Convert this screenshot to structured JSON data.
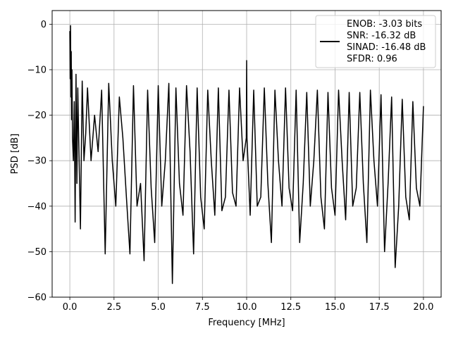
{
  "chart_data": {
    "type": "line",
    "title": "",
    "xlabel": "Frequency [MHz]",
    "ylabel": "PSD [dB]",
    "xlim": [
      -1.0,
      21.0
    ],
    "ylim": [
      -60,
      3
    ],
    "xticks": [
      0.0,
      2.5,
      5.0,
      7.5,
      10.0,
      12.5,
      15.0,
      17.5,
      20.0
    ],
    "xtick_labels": [
      "0.0",
      "2.5",
      "5.0",
      "7.5",
      "10.0",
      "12.5",
      "15.0",
      "17.5",
      "20.0"
    ],
    "yticks": [
      0,
      -10,
      -20,
      -30,
      -40,
      -50,
      -60
    ],
    "ytick_labels": [
      "0",
      "−10",
      "−20",
      "−30",
      "−40",
      "−50",
      "−60"
    ],
    "grid": true,
    "legend_position": "top-right",
    "legend_lines": [
      "ENOB: -3.03 bits",
      "SNR: -16.32 dB",
      "SINAD: -16.48 dB",
      "SFDR: 0.96"
    ],
    "series": [
      {
        "color": "#000000",
        "x": [
          0.0,
          0.02,
          0.04,
          0.06,
          0.08,
          0.1,
          0.12,
          0.15,
          0.2,
          0.25,
          0.3,
          0.35,
          0.4,
          0.45,
          0.5,
          0.6,
          0.7,
          0.8,
          0.9,
          1.0,
          1.2,
          1.4,
          1.6,
          1.8,
          2.0,
          2.2,
          2.4,
          2.6,
          2.8,
          3.0,
          3.2,
          3.4,
          3.6,
          3.8,
          4.0,
          4.2,
          4.4,
          4.6,
          4.8,
          5.0,
          5.2,
          5.4,
          5.6,
          5.8,
          6.0,
          6.2,
          6.4,
          6.6,
          6.8,
          7.0,
          7.2,
          7.4,
          7.6,
          7.8,
          8.0,
          8.2,
          8.4,
          8.6,
          8.8,
          9.0,
          9.2,
          9.4,
          9.6,
          9.8,
          9.98,
          10.0,
          10.02,
          10.2,
          10.4,
          10.6,
          10.8,
          11.0,
          11.2,
          11.4,
          11.6,
          11.8,
          12.0,
          12.2,
          12.4,
          12.6,
          12.8,
          13.0,
          13.2,
          13.4,
          13.6,
          13.8,
          14.0,
          14.2,
          14.4,
          14.6,
          14.8,
          15.0,
          15.2,
          15.4,
          15.6,
          15.8,
          16.0,
          16.2,
          16.4,
          16.6,
          16.8,
          17.0,
          17.2,
          17.4,
          17.6,
          17.8,
          18.0,
          18.2,
          18.4,
          18.6,
          18.8,
          19.0,
          19.2,
          19.4,
          19.6,
          19.8,
          20.0
        ],
        "y": [
          -1.5,
          -12.0,
          -0.3,
          -16.0,
          -6.0,
          -21.0,
          -10.0,
          -25.0,
          -30.0,
          -17.0,
          -43.5,
          -11.0,
          -35.0,
          -14.0,
          -25.0,
          -45.0,
          -12.5,
          -30.0,
          -24.0,
          -14.0,
          -30.0,
          -20.0,
          -28.0,
          -14.5,
          -50.5,
          -13.0,
          -30.0,
          -40.0,
          -16.0,
          -25.0,
          -38.0,
          -50.5,
          -13.5,
          -40.0,
          -35.0,
          -52.0,
          -14.5,
          -36.0,
          -48.0,
          -13.5,
          -40.0,
          -30.0,
          -13.0,
          -57.0,
          -14.0,
          -35.0,
          -42.0,
          -13.5,
          -28.0,
          -50.5,
          -14.0,
          -38.0,
          -45.0,
          -14.5,
          -30.0,
          -42.0,
          -14.0,
          -41.0,
          -38.0,
          -14.5,
          -37.0,
          -40.0,
          -14.0,
          -30.0,
          -25.0,
          -8.0,
          -25.0,
          -42.0,
          -14.5,
          -40.0,
          -38.0,
          -14.0,
          -35.0,
          -48.0,
          -14.5,
          -30.0,
          -40.0,
          -14.0,
          -36.0,
          -41.0,
          -14.5,
          -48.0,
          -35.0,
          -15.0,
          -40.0,
          -30.0,
          -14.5,
          -38.0,
          -45.0,
          -15.0,
          -36.0,
          -42.0,
          -14.5,
          -30.0,
          -43.0,
          -15.0,
          -40.0,
          -36.0,
          -15.0,
          -35.0,
          -48.0,
          -14.5,
          -30.0,
          -40.0,
          -15.5,
          -50.0,
          -35.0,
          -16.0,
          -53.5,
          -40.0,
          -16.5,
          -38.0,
          -43.0,
          -17.0,
          -36.0,
          -40.0,
          -18.0
        ]
      }
    ]
  }
}
